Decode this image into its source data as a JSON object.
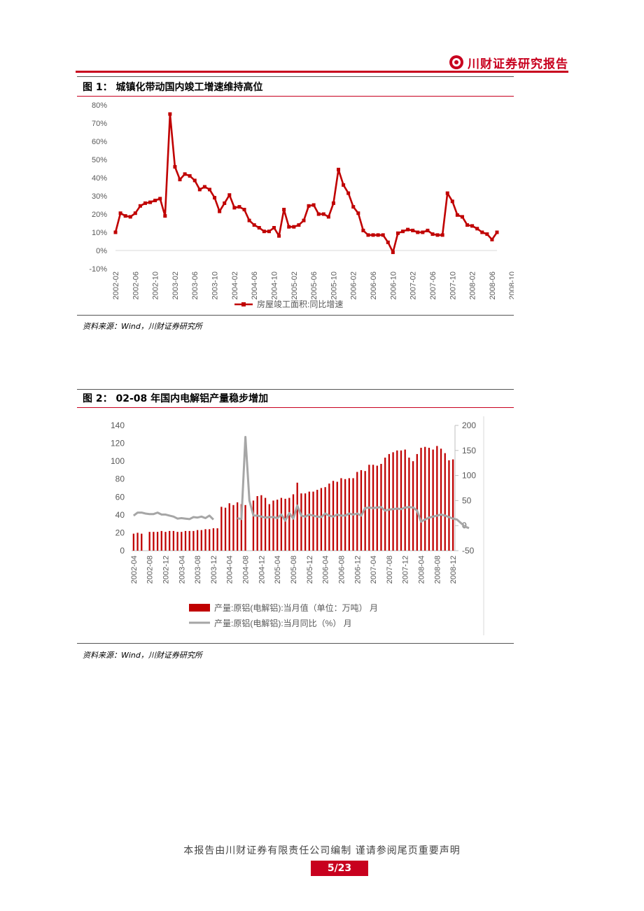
{
  "header": {
    "brand": "川财证券研究报告"
  },
  "figure1": {
    "title": "图 1： 城镇化带动国内竣工增速维持高位",
    "source": "资料来源：Wind，川财证券研究所",
    "chart_data": {
      "type": "line",
      "title": "",
      "xlabel": "",
      "ylabel": "",
      "y_ticks": [
        "80%",
        "70%",
        "60%",
        "50%",
        "40%",
        "30%",
        "20%",
        "10%",
        "0%",
        "-10%"
      ],
      "ylim": [
        -10,
        80
      ],
      "x_tick_labels": [
        "2002-02",
        "2002-06",
        "2002-10",
        "2003-02",
        "2003-06",
        "2003-10",
        "2004-02",
        "2004-06",
        "2004-10",
        "2005-02",
        "2005-06",
        "2005-10",
        "2006-02",
        "2006-06",
        "2006-10",
        "2007-02",
        "2007-06",
        "2007-10",
        "2008-02",
        "2008-06",
        "2008-10"
      ],
      "legend_position": "bottom",
      "grid": false,
      "series": [
        {
          "name": "房屋竣工面积:同比增速",
          "color": "#c00000",
          "marker": "square",
          "values": [
            10,
            20.5,
            19,
            18.5,
            20.5,
            24.5,
            26,
            26.5,
            27.5,
            28.5,
            19,
            75,
            46,
            39,
            42,
            41,
            38.5,
            33.5,
            35,
            33.5,
            29,
            21.5,
            26,
            30.5,
            23.5,
            24,
            22.5,
            16.5,
            14,
            12.5,
            10.5,
            10.5,
            12.5,
            8,
            22.5,
            13,
            13,
            14,
            16.5,
            24.5,
            25,
            20,
            20,
            18.5,
            26,
            44.5,
            36,
            31.5,
            24,
            20.5,
            11,
            8.5,
            8.5,
            8.5,
            8.5,
            4.5,
            -1,
            9.5,
            10.5,
            11.5,
            11,
            10,
            10,
            11,
            9,
            8.5,
            8.5,
            31.5,
            27,
            19.5,
            18.5,
            14,
            13.5,
            12,
            10,
            9,
            6,
            10
          ]
        }
      ]
    }
  },
  "figure2": {
    "title": "图 2： 02-08 年国内电解铝产量稳步增加",
    "source": "资料来源：Wind，川财证券研究所",
    "chart_data": {
      "type": "bar",
      "title": "",
      "xlabel": "",
      "y_left_ticks": [
        "140",
        "120",
        "100",
        "80",
        "60",
        "40",
        "20",
        "0"
      ],
      "y_right_ticks": [
        "200",
        "150",
        "100",
        "50",
        "0",
        "-50"
      ],
      "ylim_left": [
        0,
        140
      ],
      "ylim_right": [
        -50,
        200
      ],
      "x_tick_labels": [
        "2002-04",
        "2002-08",
        "2002-12",
        "2003-04",
        "2003-08",
        "2003-12",
        "2004-04",
        "2004-08",
        "2004-12",
        "2005-04",
        "2005-08",
        "2005-12",
        "2006-04",
        "2006-08",
        "2006-12",
        "2007-04",
        "2007-08",
        "2007-12",
        "2008-04",
        "2008-08",
        "2008-12"
      ],
      "legend_position": "bottom",
      "grid": false,
      "series": [
        {
          "name": "产量:原铝(电解铝):当月值（单位：万吨） 月",
          "type": "bar",
          "axis": "left",
          "color": "#c00000",
          "values": [
            19,
            20,
            19,
            null,
            21,
            21,
            21,
            22,
            21,
            22,
            22,
            21,
            21,
            22,
            22,
            22,
            23,
            23,
            24,
            24,
            25,
            25,
            49,
            48,
            53,
            51,
            54,
            52,
            51,
            null,
            56,
            61,
            62,
            59,
            52,
            56,
            57,
            59,
            58,
            59,
            63,
            76,
            64,
            64,
            66,
            66,
            68,
            70,
            71,
            75,
            78,
            77,
            81,
            80,
            81,
            81,
            88,
            90,
            89,
            96,
            96,
            95,
            97,
            104,
            108,
            110,
            112,
            112,
            113,
            104,
            100,
            108,
            115,
            116,
            115,
            113,
            117,
            114,
            109,
            101,
            102
          ]
        },
        {
          "name": "产量:原铝(电解铝):当月同比（%） 月",
          "type": "line",
          "axis": "right",
          "color": "#a6a6a6",
          "values": [
            20,
            26,
            26,
            24,
            23,
            23,
            26,
            22,
            22,
            20,
            18,
            14,
            15,
            14,
            13,
            17,
            16,
            18,
            15,
            20,
            12,
            null,
            null,
            null,
            null,
            null,
            15,
            13,
            177,
            50,
            20,
            20,
            18,
            16,
            17,
            17,
            15,
            22,
            10,
            25,
            14,
            40,
            20,
            18,
            22,
            20,
            18,
            17,
            24,
            20,
            18,
            22,
            20,
            20,
            24,
            22,
            24,
            20,
            35,
            36,
            35,
            36,
            37,
            30,
            32,
            33,
            34,
            33,
            36,
            37,
            36,
            30,
            8,
            12,
            16,
            18,
            20,
            22,
            20,
            17,
            14,
            12,
            5,
            -2,
            -5
          ]
        }
      ]
    }
  },
  "footer": {
    "disclaimer": "本报告由川财证券有限责任公司编制  谨请参阅尾页重要声明",
    "page": "5/23"
  }
}
